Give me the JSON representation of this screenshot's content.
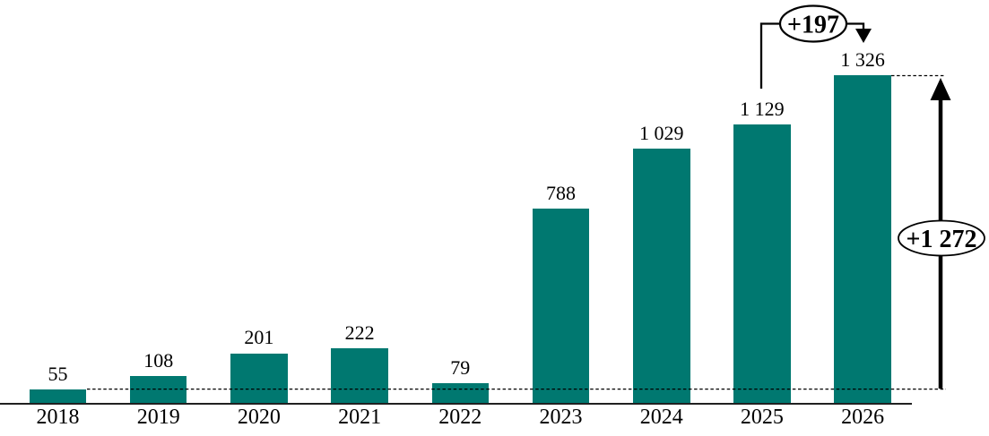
{
  "page": {
    "background_color": "#ffffff",
    "text_color": "#000000"
  },
  "chart_data": {
    "type": "bar",
    "title": "",
    "xlabel": "",
    "ylabel": "",
    "categories": [
      "2018",
      "2019",
      "2020",
      "2021",
      "2022",
      "2023",
      "2024",
      "2025",
      "2026"
    ],
    "values": [
      55,
      108,
      201,
      222,
      79,
      788,
      1029,
      1129,
      1326
    ],
    "value_labels": [
      "55",
      "108",
      "201",
      "222",
      "79",
      "788",
      "1 029",
      "1 129",
      "1 326"
    ],
    "ylim": [
      0,
      1450
    ],
    "grid": false,
    "legend": null,
    "bar_color": "#007870",
    "axis_color": "#000000",
    "annotations": [
      {
        "id": "step-change",
        "text": "+197",
        "from_category": "2025",
        "to_category": "2026"
      },
      {
        "id": "total-change",
        "text": "+1 272",
        "from_category": "2018",
        "to_category": "2026"
      }
    ],
    "reference_lines": [
      {
        "id": "baseline-2018-level",
        "style": "dashed",
        "level_value": 55
      },
      {
        "id": "peak-2026-level",
        "style": "dashed",
        "level_value": 1326
      }
    ]
  }
}
